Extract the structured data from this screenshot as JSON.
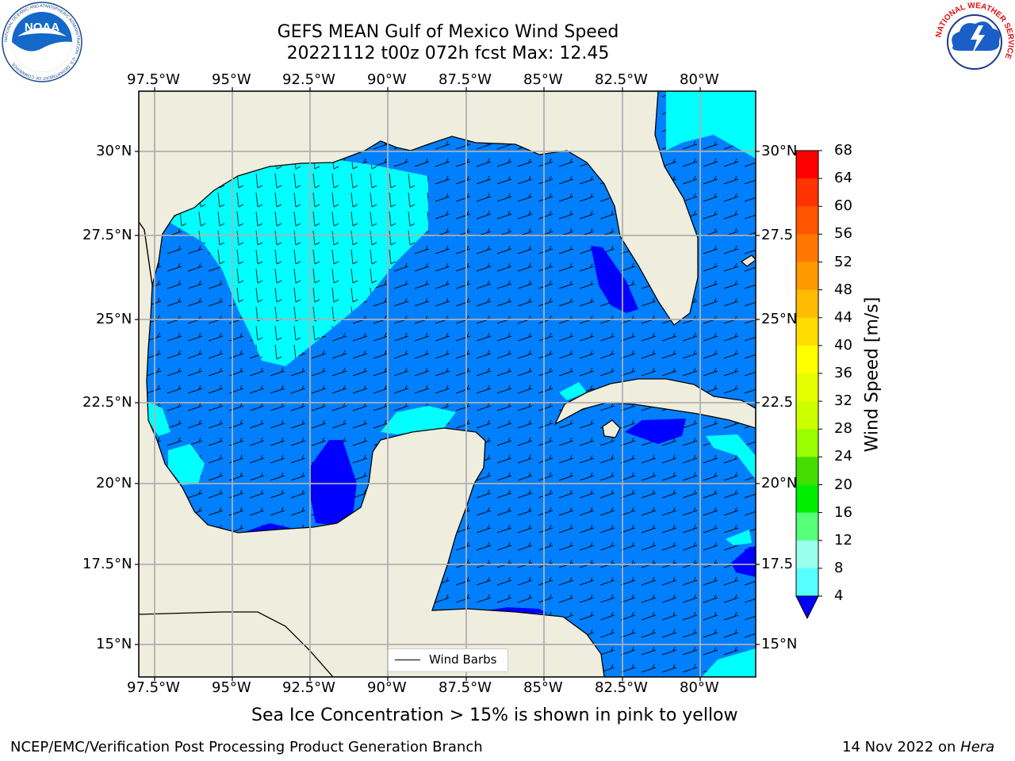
{
  "title": {
    "line1": "GEFS MEAN Gulf of Mexico Wind Speed",
    "line2": "20221112 t00z 072h fcst   Max: 12.45"
  },
  "axes": {
    "lon_labels": [
      "97.5°W",
      "95°W",
      "92.5°W",
      "90°W",
      "87.5°W",
      "85°W",
      "82.5°W",
      "80°W"
    ],
    "lat_labels_left": [
      "30°N",
      "27.5°N",
      "25°N",
      "22.5°N",
      "20°N",
      "17.5°N",
      "15°N"
    ],
    "lat_labels_right": [
      "30°N",
      "27.5",
      "25°N",
      "22.5",
      "20°N",
      "17.5",
      "15°N"
    ]
  },
  "map": {
    "land_color": "#efeddd",
    "legend_label": "Wind Barbs"
  },
  "colorbar": {
    "label": "Wind Speed [m/s]",
    "ticks": [
      "68",
      "64",
      "60",
      "56",
      "52",
      "48",
      "44",
      "40",
      "36",
      "32",
      "28",
      "24",
      "20",
      "16",
      "12",
      "8",
      "4"
    ],
    "colors": [
      "#ff0000",
      "#ff3300",
      "#ff5500",
      "#ff7700",
      "#ff9900",
      "#ffbb00",
      "#ffdd00",
      "#ffff00",
      "#e6ff00",
      "#ccff00",
      "#99ff00",
      "#44dd00",
      "#00ee00",
      "#55ff77",
      "#99ffee",
      "#55ffff",
      "#00ffff",
      "#0080ff"
    ],
    "under_color": "#0000ff"
  },
  "note": "Sea Ice Concentration > 15% is shown in pink to yellow",
  "footer": {
    "left": "NCEP/EMC/Verification Post Processing Product Generation Branch",
    "right_prefix": "14 Nov 2022 on ",
    "right_machine": "Hera"
  },
  "logos": {
    "noaa_text": "NOAA",
    "noaa_ring": "NATIONAL OCEANIC AND ATMOSPHERIC ADMINISTRATION · U.S. DEPARTMENT OF COMMERCE",
    "nws_ring": "NATIONAL WEATHER SERVICE"
  }
}
